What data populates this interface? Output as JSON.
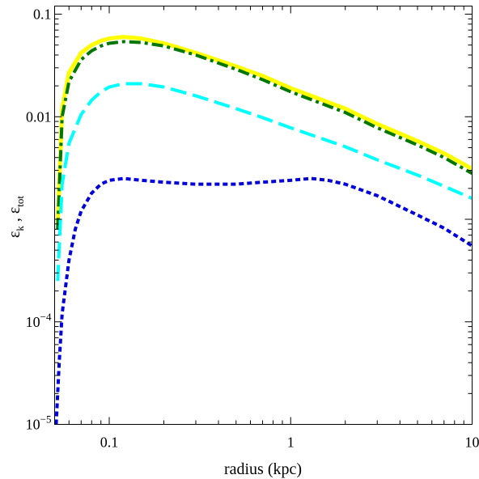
{
  "chart_data": {
    "type": "line",
    "xlabel": "radius (kpc)",
    "ylabel_main": "ε",
    "ylabel_sub1": "k",
    "ylabel_sep": " , ",
    "ylabel_sub2": "tot",
    "x_scale": "log",
    "y_scale": "log",
    "xlim": [
      0.05,
      10
    ],
    "ylim": [
      1e-05,
      0.12
    ],
    "grid": false,
    "legend": "none",
    "x_ticks": [
      {
        "value": 0.1,
        "label": "0.1"
      },
      {
        "value": 1,
        "label": "1"
      },
      {
        "value": 10,
        "label": "10"
      }
    ],
    "y_ticks": [
      {
        "value": 1e-05,
        "base": "10",
        "exp": "−5"
      },
      {
        "value": 0.0001,
        "base": "10",
        "exp": "−4"
      },
      {
        "value": 0.01,
        "label": "0.01"
      },
      {
        "value": 0.1,
        "label": "0.1"
      }
    ],
    "series": [
      {
        "color": "#ffff00",
        "style": "solid",
        "x": [
          0.052,
          0.055,
          0.06,
          0.07,
          0.08,
          0.09,
          0.1,
          0.12,
          0.15,
          0.2,
          0.3,
          0.5,
          0.7,
          1,
          2,
          3,
          5,
          7,
          10
        ],
        "y": [
          0.0009,
          0.012,
          0.027,
          0.042,
          0.05,
          0.055,
          0.058,
          0.06,
          0.058,
          0.052,
          0.042,
          0.031,
          0.025,
          0.019,
          0.012,
          0.0085,
          0.0058,
          0.0044,
          0.0031
        ]
      },
      {
        "color": "#007700",
        "style": "dashdot",
        "x": [
          0.052,
          0.055,
          0.06,
          0.07,
          0.08,
          0.09,
          0.1,
          0.12,
          0.15,
          0.2,
          0.3,
          0.5,
          0.7,
          1,
          2,
          3,
          5,
          7,
          10
        ],
        "y": [
          0.0008,
          0.01,
          0.022,
          0.036,
          0.044,
          0.049,
          0.052,
          0.054,
          0.053,
          0.049,
          0.04,
          0.029,
          0.023,
          0.0175,
          0.011,
          0.0078,
          0.0053,
          0.004,
          0.0028
        ]
      },
      {
        "color": "#00ffff",
        "style": "longdash",
        "x": [
          0.052,
          0.055,
          0.06,
          0.07,
          0.08,
          0.09,
          0.1,
          0.12,
          0.15,
          0.2,
          0.3,
          0.5,
          0.7,
          1,
          2,
          3,
          5,
          7,
          10
        ],
        "y": [
          0.00025,
          0.0022,
          0.0055,
          0.0105,
          0.0145,
          0.0175,
          0.0195,
          0.021,
          0.021,
          0.0195,
          0.016,
          0.012,
          0.0098,
          0.0078,
          0.0051,
          0.0038,
          0.0027,
          0.0021,
          0.0016
        ]
      },
      {
        "color": "#0000dd",
        "style": "dotted",
        "x": [
          0.051,
          0.053,
          0.055,
          0.06,
          0.065,
          0.07,
          0.08,
          0.09,
          0.1,
          0.12,
          0.15,
          0.2,
          0.3,
          0.4,
          0.5,
          0.7,
          1,
          1.3,
          1.6,
          2,
          3,
          5,
          7,
          10
        ],
        "y": [
          1e-05,
          4e-05,
          0.00012,
          0.0004,
          0.0008,
          0.0012,
          0.0018,
          0.0022,
          0.0024,
          0.0025,
          0.0024,
          0.0023,
          0.0022,
          0.0022,
          0.0022,
          0.0023,
          0.0024,
          0.0025,
          0.0024,
          0.0022,
          0.0017,
          0.0011,
          0.00082,
          0.00055
        ]
      }
    ]
  }
}
